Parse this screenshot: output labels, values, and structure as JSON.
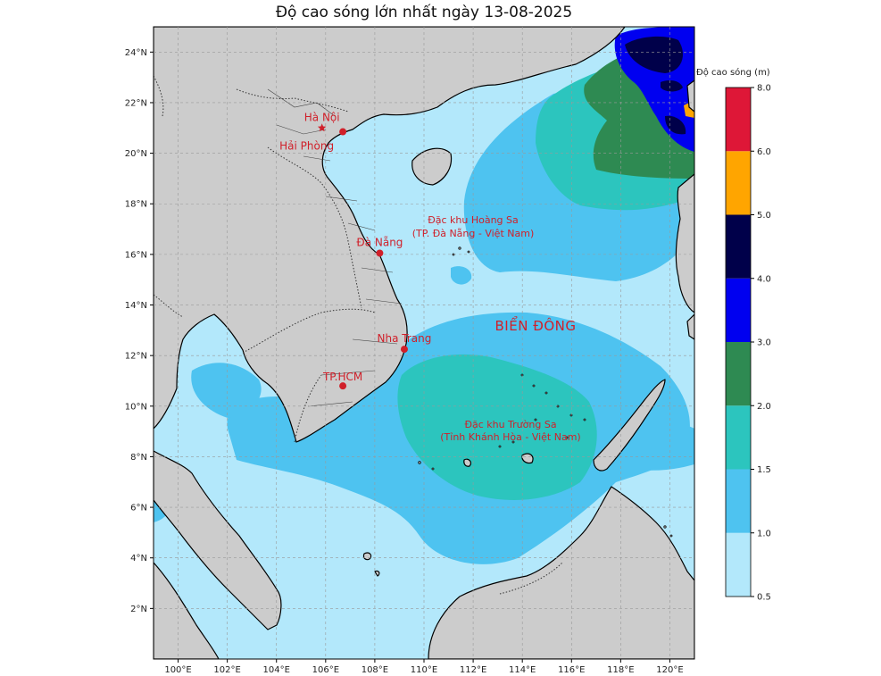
{
  "title": "Độ cao sóng lớn nhất ngày 13-08-2025",
  "axes": {
    "lon_labels": [
      "100°E",
      "102°E",
      "104°E",
      "106°E",
      "108°E",
      "110°E",
      "112°E",
      "114°E",
      "116°E",
      "118°E",
      "120°E"
    ],
    "lat_labels": [
      "2°N",
      "4°N",
      "6°N",
      "8°N",
      "10°N",
      "12°N",
      "14°N",
      "16°N",
      "18°N",
      "20°N",
      "22°N",
      "24°N"
    ]
  },
  "places": [
    {
      "name": "Hà Nội",
      "lon": 105.85,
      "lat": 21.0,
      "marker": "star"
    },
    {
      "name": "Hải Phòng",
      "lon": 106.7,
      "lat": 20.85,
      "marker": "dot"
    },
    {
      "name": "Đà Nẵng",
      "lon": 108.2,
      "lat": 16.05,
      "marker": "dot"
    },
    {
      "name": "Nha Trang",
      "lon": 109.2,
      "lat": 12.25,
      "marker": "dot"
    },
    {
      "name": "TP.HCM",
      "lon": 106.7,
      "lat": 10.8,
      "marker": "dot"
    }
  ],
  "regions": {
    "hoang_sa_1": "Đặc khu Hoàng Sa",
    "hoang_sa_2": "(TP. Đà Nẵng - Việt Nam)",
    "truong_sa_1": "Đặc khu Trường Sa",
    "truong_sa_2": "(Tỉnh Khánh Hòa - Việt Nam)",
    "sea": "BIỂN ĐÔNG"
  },
  "legend": {
    "title": "Độ cao sóng (m)",
    "bins": [
      {
        "from": 0.5,
        "to": 1.0,
        "color": "#b3e8fb"
      },
      {
        "from": 1.0,
        "to": 1.5,
        "color": "#4ec3f0"
      },
      {
        "from": 1.5,
        "to": 2.0,
        "color": "#2cc5be"
      },
      {
        "from": 2.0,
        "to": 3.0,
        "color": "#2e8a52"
      },
      {
        "from": 3.0,
        "to": 4.0,
        "color": "#0000f0"
      },
      {
        "from": 4.0,
        "to": 5.0,
        "color": "#00004a"
      },
      {
        "from": 5.0,
        "to": 6.0,
        "color": "#ffa500"
      },
      {
        "from": 6.0,
        "to": 8.0,
        "color": "#de1737"
      }
    ],
    "tick_labels": [
      "0.5",
      "1.0",
      "1.5",
      "2.0",
      "3.0",
      "4.0",
      "5.0",
      "6.0",
      "8.0"
    ]
  },
  "colors": {
    "land": "#cccccc",
    "coast": "#000000",
    "label": "#d0202a"
  }
}
